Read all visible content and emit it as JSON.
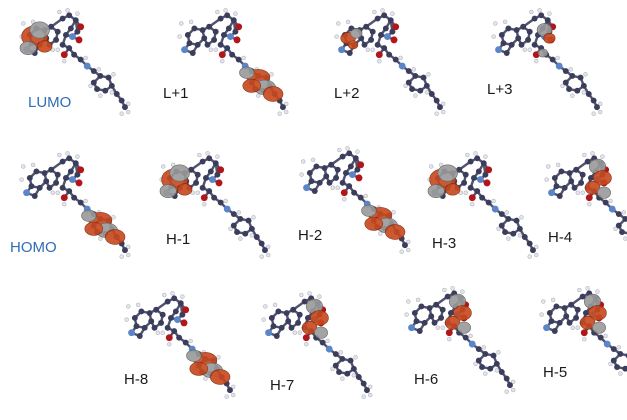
{
  "colors": {
    "label_accent": "#2f6db5",
    "label_default": "#1a1a1a",
    "orbital_positive": "#c8481e",
    "orbital_negative": "#9a9a9a",
    "carbon_atom": "#3a3d5c",
    "nitrogen_atom": "#5a86c9",
    "oxygen_atom": "#b0161a",
    "hydrogen_atom": "#e4e4ec",
    "bond": "#52546e"
  },
  "orbitals": [
    {
      "id": "lumo",
      "label": "LUMO",
      "accent": true,
      "lobes_on": "left-ring"
    },
    {
      "id": "l1",
      "label": "L+1",
      "accent": false,
      "lobes_on": "lower-chain"
    },
    {
      "id": "l2",
      "label": "L+2",
      "accent": false,
      "lobes_on": "left-ring-small"
    },
    {
      "id": "l3",
      "label": "L+3",
      "accent": false,
      "lobes_on": "top-center"
    },
    {
      "id": "homo",
      "label": "HOMO",
      "accent": true,
      "lobes_on": "lower-chain"
    },
    {
      "id": "h1",
      "label": "H-1",
      "accent": false,
      "lobes_on": "left-ring"
    },
    {
      "id": "h2",
      "label": "H-2",
      "accent": false,
      "lobes_on": "lower-chain"
    },
    {
      "id": "h3",
      "label": "H-3",
      "accent": false,
      "lobes_on": "left-ring"
    },
    {
      "id": "h4",
      "label": "H-4",
      "accent": false,
      "lobes_on": "top-right"
    },
    {
      "id": "h8",
      "label": "H-8",
      "accent": false,
      "lobes_on": "lower-chain"
    },
    {
      "id": "h7",
      "label": "H-7",
      "accent": false,
      "lobes_on": "top-right"
    },
    {
      "id": "h6",
      "label": "H-6",
      "accent": false,
      "lobes_on": "top-right"
    },
    {
      "id": "h5",
      "label": "H-5",
      "accent": false,
      "lobes_on": "top-right"
    }
  ]
}
